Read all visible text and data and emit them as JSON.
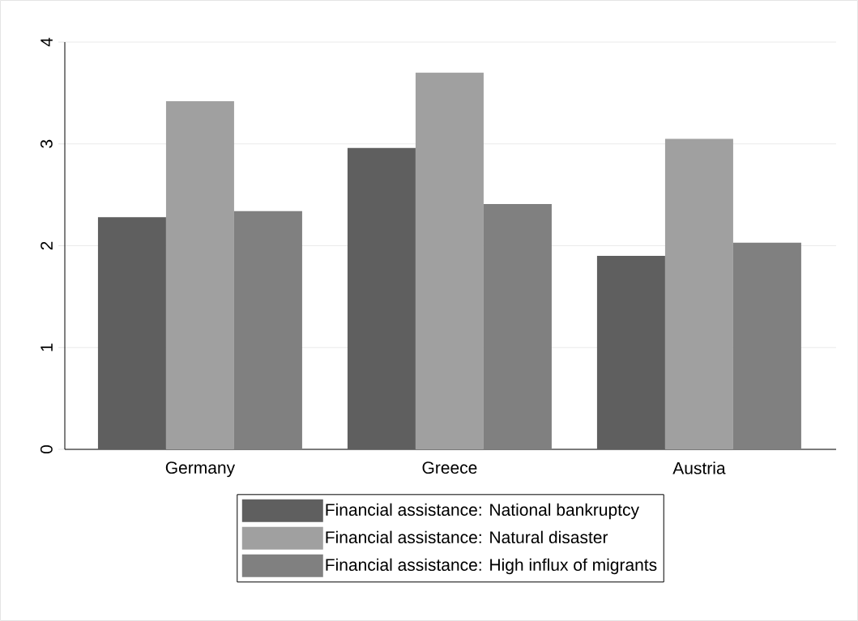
{
  "chart_data": {
    "type": "bar",
    "categories": [
      "Germany",
      "Greece",
      "Austria"
    ],
    "series": [
      {
        "name": "Financial assistance: National bankruptcy",
        "color": "#5f5f5f",
        "values": [
          2.28,
          2.96,
          1.9
        ]
      },
      {
        "name": "Financial assistance: Natural disaster",
        "color": "#a0a0a0",
        "values": [
          3.42,
          3.7,
          3.05
        ]
      },
      {
        "name": "Financial assistance: High influx of migrants",
        "color": "#808080",
        "values": [
          2.34,
          2.41,
          2.03
        ]
      }
    ],
    "ylim": [
      0,
      4
    ],
    "yticks": [
      0,
      1,
      2,
      3,
      4
    ],
    "grid": "y",
    "legend": "bottom"
  }
}
